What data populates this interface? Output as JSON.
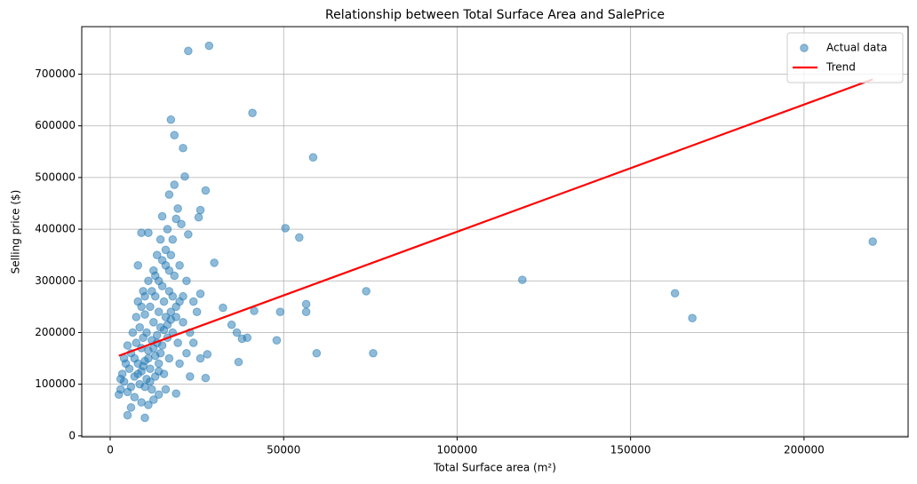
{
  "chart_data": {
    "type": "scatter",
    "title": "Relationship between Total Surface Area and SalePrice",
    "x_label": "Total Surface area (m²)",
    "y_label": "Selling price ($)",
    "xlim": [
      -8200,
      230000
    ],
    "ylim": [
      -2000,
      792000
    ],
    "xticks": [
      0,
      50000,
      100000,
      150000,
      200000
    ],
    "yticks": [
      0,
      100000,
      200000,
      300000,
      400000,
      500000,
      600000,
      700000
    ],
    "grid": true,
    "legend": "upper right",
    "series": [
      {
        "name": "Actual data",
        "type": "scatter",
        "color": "#1f77b4",
        "x": [
          22500,
          28500,
          17500,
          41000,
          18500,
          21000,
          58500,
          21500,
          27500,
          50500,
          54500,
          118800,
          73800,
          162800,
          167800,
          219800,
          59500,
          75800,
          48000,
          49000,
          56500,
          56500,
          41500,
          37000,
          38000,
          39500,
          35000,
          36500,
          32500,
          30000,
          26000,
          25500,
          28000,
          27500,
          19000,
          10000,
          5000,
          8000,
          9000,
          11000,
          15000,
          17000,
          18500,
          3000,
          2500,
          3500,
          4000,
          4500,
          5000,
          5500,
          6000,
          6000,
          6500,
          7000,
          7000,
          7500,
          7500,
          8000,
          8000,
          8500,
          8500,
          9000,
          9000,
          9500,
          9500,
          10000,
          10000,
          10500,
          10500,
          11000,
          11000,
          11500,
          11500,
          12000,
          12000,
          12500,
          12500,
          13000,
          13000,
          13500,
          13500,
          14000,
          14000,
          14500,
          14500,
          15000,
          15000,
          15500,
          15500,
          16000,
          16000,
          16500,
          16500,
          17000,
          17000,
          17500,
          17500,
          18000,
          18000,
          18500,
          19000,
          19000,
          19500,
          20000,
          20000,
          21000,
          21000,
          22000,
          22000,
          23000,
          23000,
          24000,
          24000,
          25000,
          26000,
          26000,
          6000,
          7000,
          9000,
          11000,
          12500,
          14000,
          16000,
          3000,
          4000,
          5000,
          9000,
          10000,
          12000,
          13000,
          14000,
          15000,
          16000,
          17000,
          18000,
          19000,
          20000,
          8000,
          9500,
          11000,
          12500,
          13500,
          14500,
          15500,
          16500,
          17500,
          10000,
          11500,
          13000,
          14000,
          20500,
          22500,
          19500
        ],
        "values": [
          745000,
          755000,
          612000,
          625000,
          582000,
          557000,
          539000,
          502000,
          475000,
          402000,
          384000,
          302000,
          280000,
          276000,
          228000,
          376000,
          160000,
          160000,
          185000,
          240000,
          255000,
          240000,
          242000,
          143000,
          188000,
          190000,
          215000,
          200000,
          248000,
          335000,
          437000,
          423000,
          158000,
          112000,
          82000,
          35000,
          40000,
          330000,
          393000,
          393000,
          425000,
          467000,
          486000,
          90000,
          80000,
          120000,
          105000,
          140000,
          175000,
          130000,
          160000,
          95000,
          200000,
          150000,
          115000,
          230000,
          180000,
          140000,
          260000,
          100000,
          210000,
          170000,
          125000,
          280000,
          190000,
          145000,
          235000,
          110000,
          200000,
          165000,
          300000,
          130000,
          250000,
          185000,
          90000,
          220000,
          320000,
          155000,
          270000,
          195000,
          350000,
          140000,
          240000,
          210000,
          380000,
          175000,
          290000,
          120000,
          260000,
          230000,
          330000,
          190000,
          400000,
          150000,
          280000,
          240000,
          350000,
          200000,
          380000,
          310000,
          250000,
          420000,
          180000,
          330000,
          140000,
          220000,
          270000,
          300000,
          160000,
          200000,
          115000,
          260000,
          180000,
          240000,
          275000,
          150000,
          55000,
          75000,
          65000,
          60000,
          70000,
          80000,
          90000,
          110000,
          150000,
          85000,
          250000,
          270000,
          280000,
          310000,
          300000,
          340000,
          360000,
          320000,
          270000,
          230000,
          260000,
          120000,
          135000,
          150000,
          170000,
          180000,
          160000,
          205000,
          215000,
          225000,
          95000,
          105000,
          115000,
          125000,
          410000,
          390000,
          440000
        ]
      },
      {
        "name": "Trend",
        "type": "line",
        "color": "#ff0000",
        "x": [
          2500,
          219800
        ],
        "values": [
          155000,
          690000
        ]
      }
    ]
  }
}
